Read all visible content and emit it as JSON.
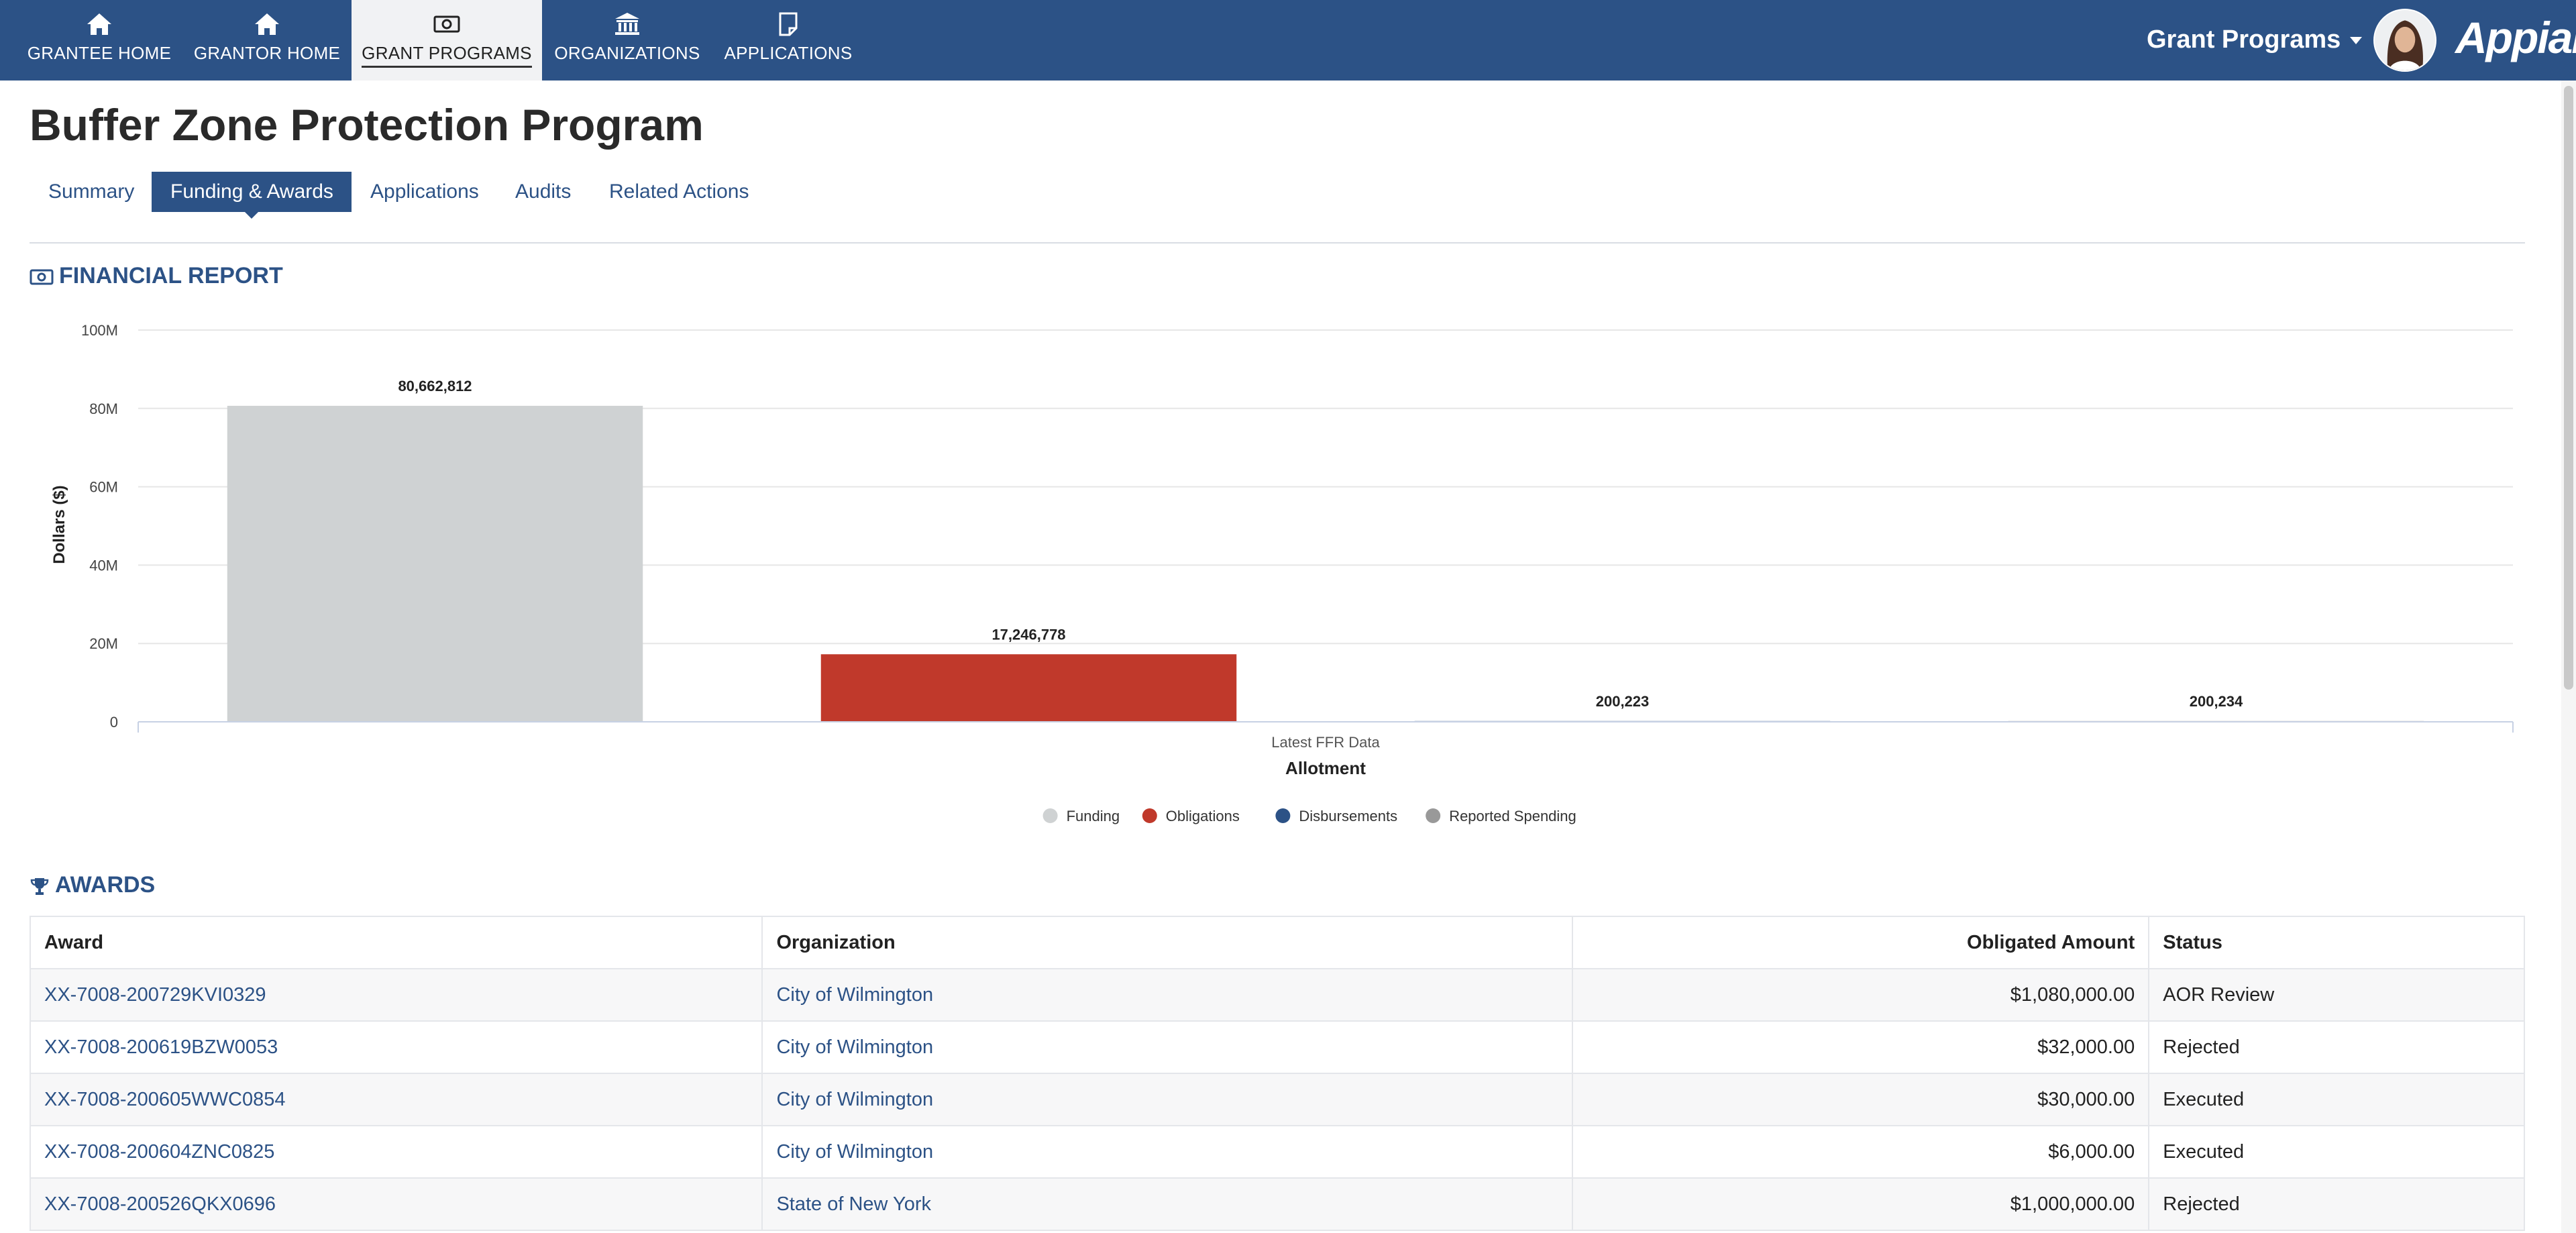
{
  "nav": {
    "items": [
      {
        "label": "GRANTEE HOME",
        "icon": "home-icon"
      },
      {
        "label": "GRANTOR HOME",
        "icon": "home-icon"
      },
      {
        "label": "GRANT PROGRAMS",
        "icon": "money-icon",
        "active": true
      },
      {
        "label": "ORGANIZATIONS",
        "icon": "bank-icon"
      },
      {
        "label": "APPLICATIONS",
        "icon": "note-icon"
      }
    ],
    "app_switcher": "Grant Programs",
    "logo": "Appian"
  },
  "page": {
    "title": "Buffer Zone Protection Program",
    "tabs": [
      {
        "label": "Summary"
      },
      {
        "label": "Funding & Awards",
        "active": true
      },
      {
        "label": "Applications"
      },
      {
        "label": "Audits"
      },
      {
        "label": "Related Actions"
      }
    ]
  },
  "financial_report": {
    "heading": "FINANCIAL REPORT",
    "icon": "money-icon"
  },
  "chart_data": {
    "type": "bar",
    "categories": [
      "Latest FFR Data"
    ],
    "xlabel": "Allotment",
    "ylabel": "Dollars ($)",
    "ylim": [
      0,
      100000000
    ],
    "yticks": [
      "0",
      "20M",
      "40M",
      "60M",
      "80M",
      "100M"
    ],
    "grid": true,
    "legend_position": "bottom",
    "series": [
      {
        "name": "Funding",
        "values": [
          80662812
        ],
        "label": "80,662,812",
        "color": "#cfd2d3"
      },
      {
        "name": "Obligations",
        "values": [
          17246778
        ],
        "label": "17,246,778",
        "color": "#c0392b"
      },
      {
        "name": "Disbursements",
        "values": [
          200223
        ],
        "label": "200,223",
        "color": "#2c5286"
      },
      {
        "name": "Reported Spending",
        "values": [
          200234
        ],
        "label": "200,234",
        "color": "#999999"
      }
    ]
  },
  "awards": {
    "heading": "AWARDS",
    "icon": "trophy-icon",
    "columns": [
      "Award",
      "Organization",
      "Obligated Amount",
      "Status"
    ],
    "rows": [
      {
        "award": "XX-7008-200729KVI0329",
        "organization": "City of Wilmington",
        "amount": "$1,080,000.00",
        "status": "AOR Review"
      },
      {
        "award": "XX-7008-200619BZW0053",
        "organization": "City of Wilmington",
        "amount": "$32,000.00",
        "status": "Rejected"
      },
      {
        "award": "XX-7008-200605WWC0854",
        "organization": "City of Wilmington",
        "amount": "$30,000.00",
        "status": "Executed"
      },
      {
        "award": "XX-7008-200604ZNC0825",
        "organization": "City of Wilmington",
        "amount": "$6,000.00",
        "status": "Executed"
      },
      {
        "award": "XX-7008-200526QKX0696",
        "organization": "State of New York",
        "amount": "$1,000,000.00",
        "status": "Rejected"
      }
    ]
  }
}
